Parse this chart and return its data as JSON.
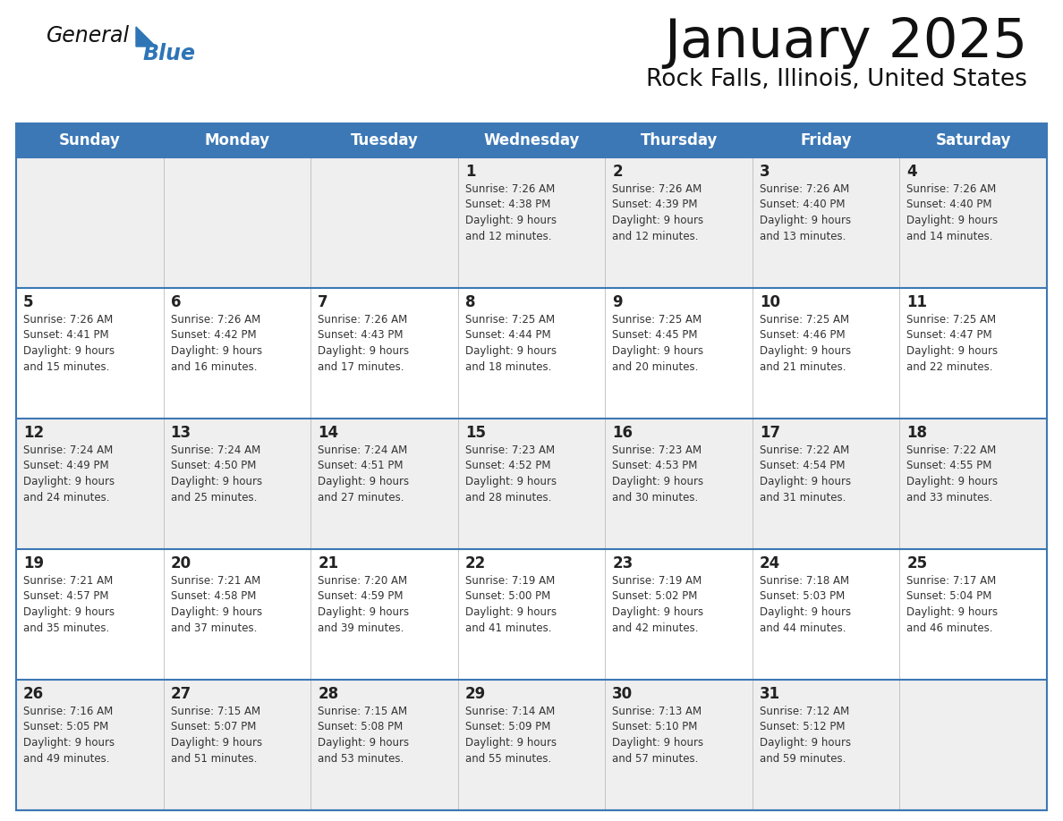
{
  "title": "January 2025",
  "subtitle": "Rock Falls, Illinois, United States",
  "days_of_week": [
    "Sunday",
    "Monday",
    "Tuesday",
    "Wednesday",
    "Thursday",
    "Friday",
    "Saturday"
  ],
  "header_bg": "#3C78B5",
  "header_text": "#FFFFFF",
  "row_bg_odd": "#EFEFEF",
  "row_bg_even": "#FFFFFF",
  "cell_text": "#333333",
  "day_num_color": "#222222",
  "border_color": "#3C78B5",
  "title_color": "#111111",
  "subtitle_color": "#111111",
  "logo_general_color": "#111111",
  "logo_blue_color": "#2E75B6",
  "logo_triangle_color": "#2E75B6",
  "calendar_data": [
    [
      null,
      null,
      null,
      {
        "day": 1,
        "sunrise": "7:26 AM",
        "sunset": "4:38 PM",
        "daylight": "9 hours and 12 minutes"
      },
      {
        "day": 2,
        "sunrise": "7:26 AM",
        "sunset": "4:39 PM",
        "daylight": "9 hours and 12 minutes"
      },
      {
        "day": 3,
        "sunrise": "7:26 AM",
        "sunset": "4:40 PM",
        "daylight": "9 hours and 13 minutes"
      },
      {
        "day": 4,
        "sunrise": "7:26 AM",
        "sunset": "4:40 PM",
        "daylight": "9 hours and 14 minutes"
      }
    ],
    [
      {
        "day": 5,
        "sunrise": "7:26 AM",
        "sunset": "4:41 PM",
        "daylight": "9 hours and 15 minutes"
      },
      {
        "day": 6,
        "sunrise": "7:26 AM",
        "sunset": "4:42 PM",
        "daylight": "9 hours and 16 minutes"
      },
      {
        "day": 7,
        "sunrise": "7:26 AM",
        "sunset": "4:43 PM",
        "daylight": "9 hours and 17 minutes"
      },
      {
        "day": 8,
        "sunrise": "7:25 AM",
        "sunset": "4:44 PM",
        "daylight": "9 hours and 18 minutes"
      },
      {
        "day": 9,
        "sunrise": "7:25 AM",
        "sunset": "4:45 PM",
        "daylight": "9 hours and 20 minutes"
      },
      {
        "day": 10,
        "sunrise": "7:25 AM",
        "sunset": "4:46 PM",
        "daylight": "9 hours and 21 minutes"
      },
      {
        "day": 11,
        "sunrise": "7:25 AM",
        "sunset": "4:47 PM",
        "daylight": "9 hours and 22 minutes"
      }
    ],
    [
      {
        "day": 12,
        "sunrise": "7:24 AM",
        "sunset": "4:49 PM",
        "daylight": "9 hours and 24 minutes"
      },
      {
        "day": 13,
        "sunrise": "7:24 AM",
        "sunset": "4:50 PM",
        "daylight": "9 hours and 25 minutes"
      },
      {
        "day": 14,
        "sunrise": "7:24 AM",
        "sunset": "4:51 PM",
        "daylight": "9 hours and 27 minutes"
      },
      {
        "day": 15,
        "sunrise": "7:23 AM",
        "sunset": "4:52 PM",
        "daylight": "9 hours and 28 minutes"
      },
      {
        "day": 16,
        "sunrise": "7:23 AM",
        "sunset": "4:53 PM",
        "daylight": "9 hours and 30 minutes"
      },
      {
        "day": 17,
        "sunrise": "7:22 AM",
        "sunset": "4:54 PM",
        "daylight": "9 hours and 31 minutes"
      },
      {
        "day": 18,
        "sunrise": "7:22 AM",
        "sunset": "4:55 PM",
        "daylight": "9 hours and 33 minutes"
      }
    ],
    [
      {
        "day": 19,
        "sunrise": "7:21 AM",
        "sunset": "4:57 PM",
        "daylight": "9 hours and 35 minutes"
      },
      {
        "day": 20,
        "sunrise": "7:21 AM",
        "sunset": "4:58 PM",
        "daylight": "9 hours and 37 minutes"
      },
      {
        "day": 21,
        "sunrise": "7:20 AM",
        "sunset": "4:59 PM",
        "daylight": "9 hours and 39 minutes"
      },
      {
        "day": 22,
        "sunrise": "7:19 AM",
        "sunset": "5:00 PM",
        "daylight": "9 hours and 41 minutes"
      },
      {
        "day": 23,
        "sunrise": "7:19 AM",
        "sunset": "5:02 PM",
        "daylight": "9 hours and 42 minutes"
      },
      {
        "day": 24,
        "sunrise": "7:18 AM",
        "sunset": "5:03 PM",
        "daylight": "9 hours and 44 minutes"
      },
      {
        "day": 25,
        "sunrise": "7:17 AM",
        "sunset": "5:04 PM",
        "daylight": "9 hours and 46 minutes"
      }
    ],
    [
      {
        "day": 26,
        "sunrise": "7:16 AM",
        "sunset": "5:05 PM",
        "daylight": "9 hours and 49 minutes"
      },
      {
        "day": 27,
        "sunrise": "7:15 AM",
        "sunset": "5:07 PM",
        "daylight": "9 hours and 51 minutes"
      },
      {
        "day": 28,
        "sunrise": "7:15 AM",
        "sunset": "5:08 PM",
        "daylight": "9 hours and 53 minutes"
      },
      {
        "day": 29,
        "sunrise": "7:14 AM",
        "sunset": "5:09 PM",
        "daylight": "9 hours and 55 minutes"
      },
      {
        "day": 30,
        "sunrise": "7:13 AM",
        "sunset": "5:10 PM",
        "daylight": "9 hours and 57 minutes"
      },
      {
        "day": 31,
        "sunrise": "7:12 AM",
        "sunset": "5:12 PM",
        "daylight": "9 hours and 59 minutes"
      },
      null
    ]
  ]
}
